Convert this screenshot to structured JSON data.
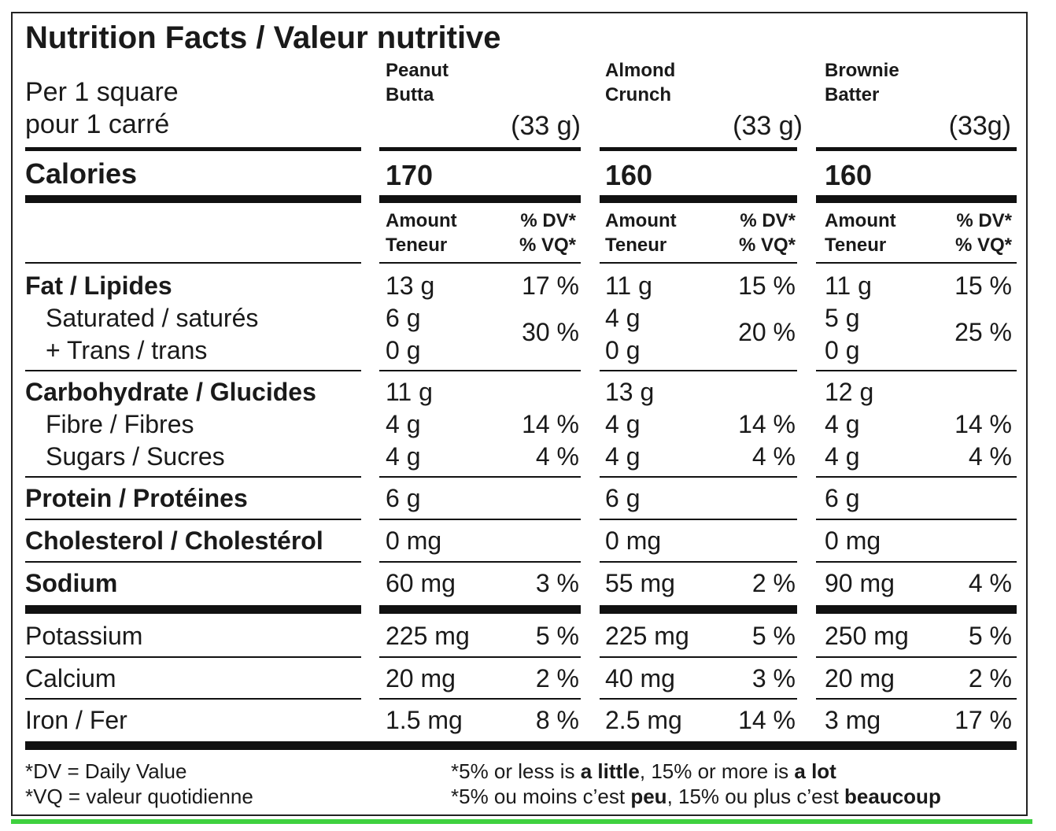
{
  "title": "Nutrition Facts / Valeur nutritive",
  "serving": {
    "en": "Per 1 square",
    "fr": "pour 1 carré"
  },
  "products": [
    {
      "name_line1": "Peanut",
      "name_line2": "Butta",
      "weight": "(33 g)",
      "calories": "170",
      "fat": "13 g",
      "fat_dv": "17 %",
      "saturated": "6 g",
      "trans": "0 g",
      "sat_trans_dv": "30 %",
      "carb": "11 g",
      "fibre": "4 g",
      "fibre_dv": "14 %",
      "sugars": "4 g",
      "sugars_dv": "4 %",
      "protein": "6 g",
      "cholesterol": "0 mg",
      "sodium": "60 mg",
      "sodium_dv": "3 %",
      "potassium": "225 mg",
      "potassium_dv": "5 %",
      "calcium": "20 mg",
      "calcium_dv": "2 %",
      "iron": "1.5 mg",
      "iron_dv": "8 %"
    },
    {
      "name_line1": "Almond",
      "name_line2": "Crunch",
      "weight": "(33 g)",
      "calories": "160",
      "fat": "11 g",
      "fat_dv": "15 %",
      "saturated": "4 g",
      "trans": "0 g",
      "sat_trans_dv": "20 %",
      "carb": "13 g",
      "fibre": "4 g",
      "fibre_dv": "14 %",
      "sugars": "4 g",
      "sugars_dv": "4 %",
      "protein": "6 g",
      "cholesterol": "0 mg",
      "sodium": "55 mg",
      "sodium_dv": "2 %",
      "potassium": "225 mg",
      "potassium_dv": "5 %",
      "calcium": "40 mg",
      "calcium_dv": "3 %",
      "iron": "2.5 mg",
      "iron_dv": "14 %"
    },
    {
      "name_line1": "Brownie",
      "name_line2": "Batter",
      "weight": "(33g)",
      "calories": "160",
      "fat": "11 g",
      "fat_dv": "15 %",
      "saturated": "5 g",
      "trans": "0 g",
      "sat_trans_dv": "25 %",
      "carb": "12 g",
      "fibre": "4 g",
      "fibre_dv": "14 %",
      "sugars": "4 g",
      "sugars_dv": "4 %",
      "protein": "6 g",
      "cholesterol": "0 mg",
      "sodium": "90 mg",
      "sodium_dv": "4 %",
      "potassium": "250 mg",
      "potassium_dv": "5 %",
      "calcium": "20 mg",
      "calcium_dv": "2 %",
      "iron": "3 mg",
      "iron_dv": "17 %"
    }
  ],
  "subheader": {
    "amount": "Amount",
    "teneur": "Teneur",
    "dv": "% DV*",
    "vq": "% VQ*"
  },
  "labels": {
    "calories": "Calories",
    "fat": "Fat / Lipides",
    "saturated": "Saturated / saturés",
    "trans": "+ Trans / trans",
    "carb": "Carbohydrate / Glucides",
    "fibre": "Fibre / Fibres",
    "sugars": "Sugars / Sucres",
    "protein": "Protein / Protéines",
    "cholesterol": "Cholesterol / Cholestérol",
    "sodium": "Sodium",
    "potassium": "Potassium",
    "calcium": "Calcium",
    "iron": "Iron / Fer"
  },
  "footnote": {
    "dv": "*DV = Daily Value",
    "vq": "*VQ = valeur quotidienne",
    "en_1": "*5% or less is ",
    "en_2": "a little",
    "en_3": ", 15% or more is ",
    "en_4": "a lot",
    "fr_1": "*5% ou moins c’est ",
    "fr_2": "peu",
    "fr_3": ", 15% ou plus c’est ",
    "fr_4": "beaucoup"
  }
}
